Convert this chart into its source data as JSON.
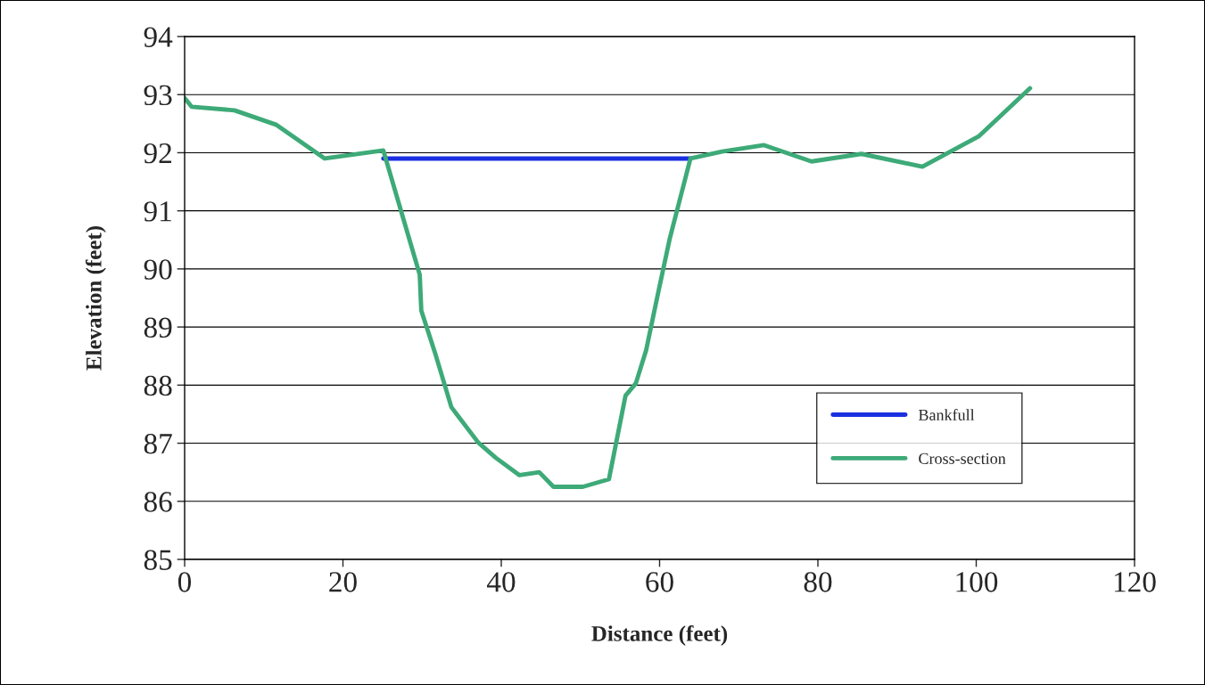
{
  "chart_data": {
    "type": "line",
    "xlabel": "Distance (feet)",
    "ylabel": "Elevation (feet)",
    "xlim": [
      0,
      120
    ],
    "ylim": [
      85,
      94
    ],
    "xticks": [
      0,
      20,
      40,
      60,
      80,
      100,
      120
    ],
    "yticks": [
      85,
      86,
      87,
      88,
      89,
      90,
      91,
      92,
      93,
      94
    ],
    "grid": "y",
    "legend": "bottom right",
    "marker": "none",
    "line_style": "solid",
    "series": [
      {
        "name": "Bankfull",
        "color": "#1a2fe0",
        "x": [
          25.1,
          63.9
        ],
        "values": [
          91.9,
          91.9
        ]
      },
      {
        "name": "Cross-section",
        "color": "#3daa78",
        "x": [
          0,
          0.9,
          6.3,
          11.6,
          17.7,
          25.1,
          29.7,
          29.9,
          31.6,
          33.7,
          37.1,
          39.3,
          42.3,
          44.8,
          46.6,
          50.3,
          53.6,
          55.7,
          57.0,
          58.3,
          59.7,
          61.3,
          63.9,
          67.9,
          73.2,
          79.2,
          85.5,
          93.2,
          100.3,
          106.8
        ],
        "values": [
          92.94,
          92.79,
          92.73,
          92.48,
          91.9,
          92.04,
          89.9,
          89.28,
          88.57,
          87.62,
          87.01,
          86.75,
          86.45,
          86.5,
          86.25,
          86.25,
          86.38,
          87.82,
          88.03,
          88.6,
          89.51,
          90.53,
          91.9,
          92.02,
          92.13,
          91.85,
          91.98,
          91.76,
          92.28,
          93.11
        ]
      }
    ]
  }
}
